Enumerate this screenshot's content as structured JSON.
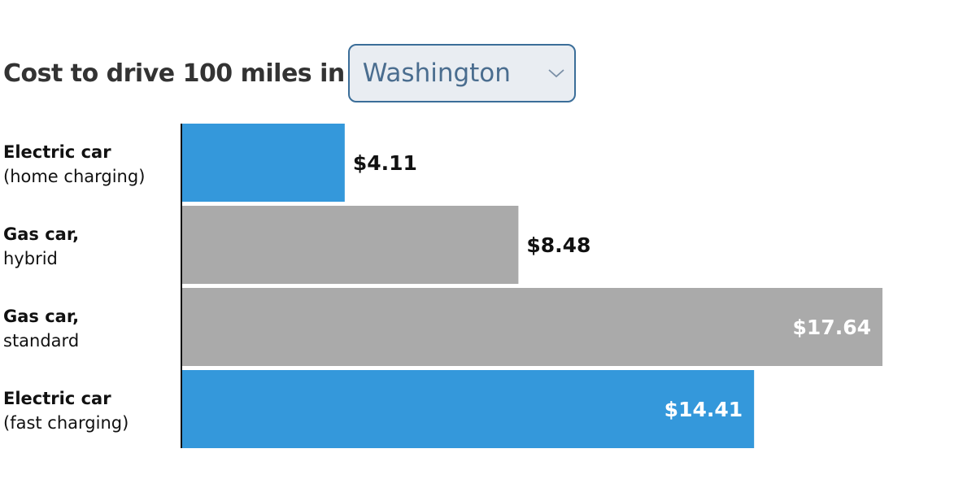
{
  "header": {
    "title": "Cost to drive 100 miles in",
    "location_select": {
      "selected_value": "Washington"
    }
  },
  "colors": {
    "electric": "#3498db",
    "gas": "#aaaaaa",
    "axis": "#111111",
    "label_dark": "#111111",
    "label_light": "#ffffff"
  },
  "chart_data": {
    "type": "bar",
    "orientation": "horizontal",
    "title": "Cost to drive 100 miles in",
    "categories": [
      {
        "name": "Electric car",
        "detail": "(home charging)",
        "value": 4.11,
        "value_label": "$4.11",
        "kind": "electric"
      },
      {
        "name": "Gas car,",
        "detail": "hybrid",
        "value": 8.48,
        "value_label": "$8.48",
        "kind": "gas"
      },
      {
        "name": "Gas car,",
        "detail": "standard",
        "value": 17.64,
        "value_label": "$17.64",
        "kind": "gas"
      },
      {
        "name": "Electric car",
        "detail": "(fast charging)",
        "value": 14.41,
        "value_label": "$14.41",
        "kind": "electric"
      }
    ],
    "xlim": [
      0,
      17.64
    ],
    "grid": false,
    "legend": "none"
  }
}
